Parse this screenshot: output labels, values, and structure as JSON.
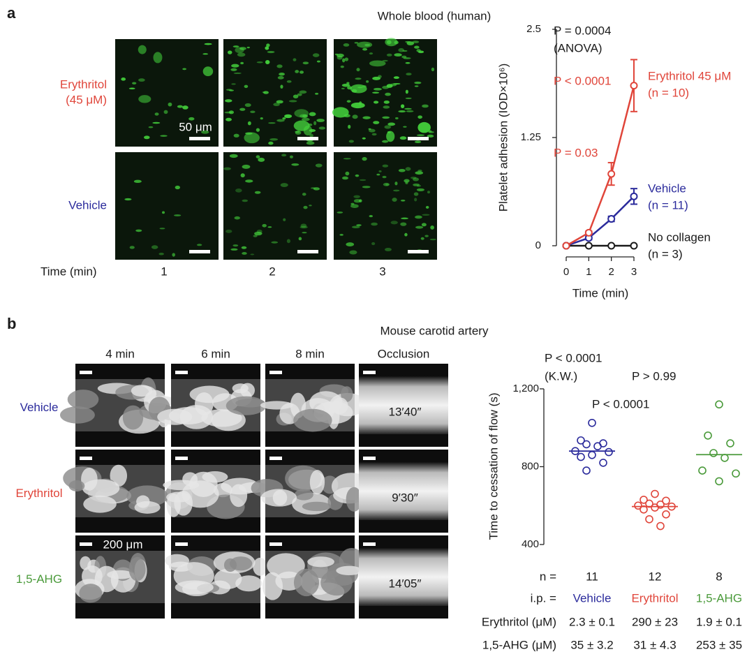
{
  "panel_a": {
    "label": "a",
    "title": "Whole blood (human)",
    "rows": [
      {
        "lines": [
          "Erythritol",
          "(45 μM)"
        ],
        "color": "#e0453a"
      },
      {
        "lines": [
          "Vehicle"
        ],
        "color": "#2b2b9c"
      }
    ],
    "scale_bar": "50 μm",
    "time_label": "Time (min)",
    "time_points": [
      1,
      2,
      3
    ]
  },
  "panel_b": {
    "label": "b",
    "title": "Mouse carotid artery",
    "columns": [
      "4 min",
      "6 min",
      "8 min",
      "Occlusion"
    ],
    "rows": [
      {
        "name": "Vehicle",
        "color": "#2b2b9c",
        "occlusion": "13′40″"
      },
      {
        "name": "Erythritol",
        "color": "#e0453a",
        "occlusion": "9′30″"
      },
      {
        "name": "1,5-AHG",
        "color": "#4a9a3a",
        "occlusion": "14′05″"
      }
    ],
    "scale_bar": "200 μm",
    "table": {
      "n_label": "n =",
      "n": [
        11,
        12,
        8
      ],
      "ip_label": "i.p. =",
      "rows": [
        {
          "label": "Erythritol (μM)",
          "cells": [
            "2.3 ± 0.1",
            "290 ± 23",
            "1.9 ± 0.1"
          ]
        },
        {
          "label": "1,5-AHG (μM)",
          "cells": [
            "35 ± 3.2",
            "31 ± 4.3",
            "253 ± 35"
          ]
        }
      ]
    }
  },
  "chart_data": [
    {
      "type": "line",
      "x_label": "Time (min)",
      "y_label": "Platelet adhesion (IOD×10⁶)",
      "x": [
        0,
        1,
        2,
        3
      ],
      "xlim": [
        0,
        3
      ],
      "ylim": [
        0,
        2.5
      ],
      "xticks": [
        0,
        1,
        2,
        3
      ],
      "yticks": [
        0,
        1.25,
        2.5
      ],
      "annotations": [
        {
          "text": "P = 0.0004",
          "color": "#1a1a1a"
        },
        {
          "text": "(ANOVA)",
          "color": "#1a1a1a"
        },
        {
          "text": "P < 0.0001",
          "color": "#e0453a"
        },
        {
          "text": "P = 0.03",
          "color": "#e0453a"
        }
      ],
      "series": [
        {
          "name": "Erythritol 45 μM",
          "note": "(n = 10)",
          "color": "#e0453a",
          "values": [
            0,
            0.15,
            0.83,
            1.85
          ],
          "errors": [
            0,
            0.02,
            0.13,
            0.3
          ]
        },
        {
          "name": "Vehicle",
          "note": "(n = 11)",
          "color": "#2b2b9c",
          "values": [
            0,
            0.09,
            0.31,
            0.57
          ],
          "errors": [
            0,
            0.02,
            0.03,
            0.09
          ]
        },
        {
          "name": "No collagen",
          "note": "(n = 3)",
          "color": "#1a1a1a",
          "values": [
            0,
            0,
            0,
            0
          ],
          "errors": [
            0,
            0,
            0,
            0
          ]
        }
      ]
    },
    {
      "type": "dot",
      "y_label": "Time to cessation of flow (s)",
      "ylim": [
        400,
        1200
      ],
      "yticks": [
        400,
        800,
        {
          "value": 1200,
          "label": "1,200"
        }
      ],
      "annotations": [
        {
          "text": "P < 0.0001"
        },
        {
          "text": "(K.W.)"
        },
        {
          "text": "P > 0.99"
        },
        {
          "text": "P < 0.0001"
        }
      ],
      "series": [
        {
          "name": "Vehicle",
          "color": "#2b2b9c",
          "values": [
            1025,
            935,
            920,
            915,
            905,
            880,
            875,
            860,
            850,
            820,
            780
          ],
          "mean": 880
        },
        {
          "name": "Erythritol",
          "color": "#e0453a",
          "values": [
            660,
            630,
            625,
            610,
            605,
            600,
            595,
            590,
            580,
            555,
            530,
            495
          ],
          "mean": 595
        },
        {
          "name": "1,5-AHG",
          "color": "#4a9a3a",
          "values": [
            1120,
            960,
            920,
            870,
            845,
            780,
            765,
            725
          ],
          "mean": 862
        }
      ]
    }
  ]
}
